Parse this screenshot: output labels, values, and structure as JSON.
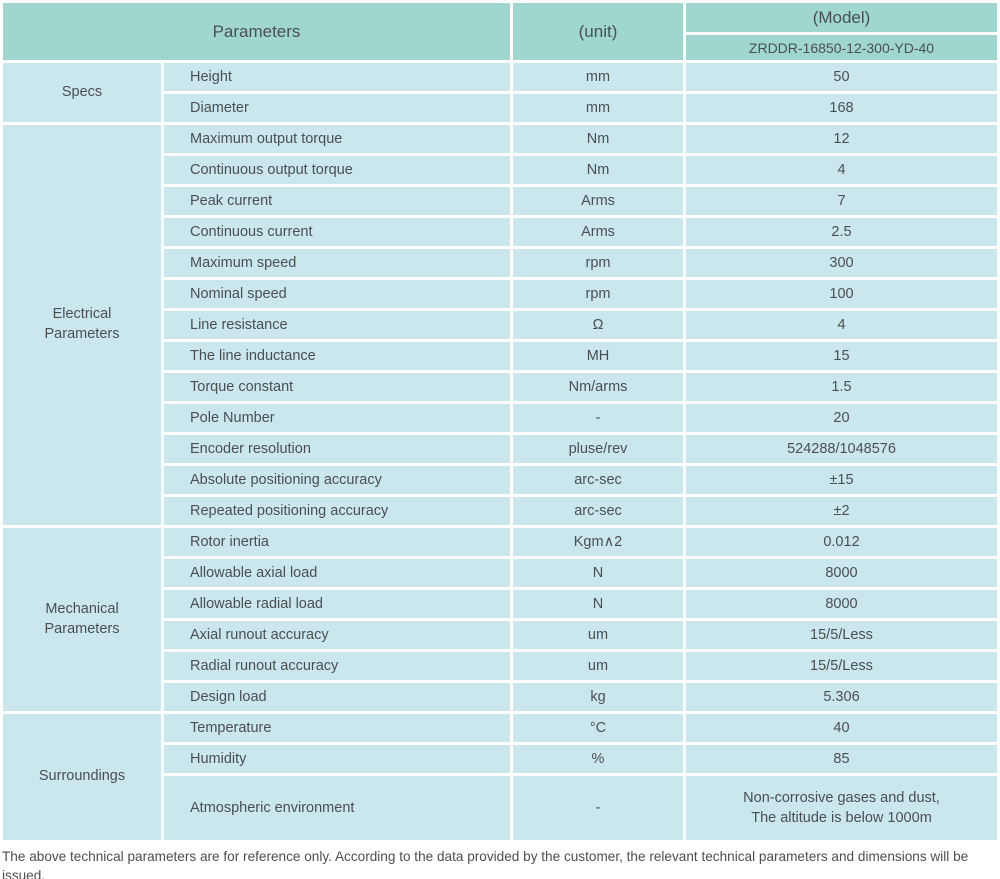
{
  "header": {
    "parameters_label": "Parameters",
    "unit_label": "(unit)",
    "model_label": "(Model)",
    "model_value": "ZRDDR-16850-12-300-YD-40"
  },
  "table": {
    "sections": [
      {
        "category": "Specs",
        "rows": [
          {
            "name": "Height",
            "unit": "mm",
            "value": "50"
          },
          {
            "name": "Diameter",
            "unit": "mm",
            "value": "168"
          }
        ]
      },
      {
        "category": "Electrical\nParameters",
        "rows": [
          {
            "name": "Maximum output torque",
            "unit": "Nm",
            "value": "12"
          },
          {
            "name": "Continuous output torque",
            "unit": "Nm",
            "value": "4"
          },
          {
            "name": "Peak current",
            "unit": "Arms",
            "value": "7"
          },
          {
            "name": "Continuous current",
            "unit": "Arms",
            "value": "2.5"
          },
          {
            "name": "Maximum speed",
            "unit": "rpm",
            "value": "300"
          },
          {
            "name": "Nominal speed",
            "unit": "rpm",
            "value": "100"
          },
          {
            "name": "Line resistance",
            "unit": "Ω",
            "value": "4"
          },
          {
            "name": "The line inductance",
            "unit": "MH",
            "value": "15"
          },
          {
            "name": "Torque constant",
            "unit": "Nm/arms",
            "value": "1.5"
          },
          {
            "name": "Pole Number",
            "unit": "-",
            "value": "20"
          },
          {
            "name": "Encoder resolution",
            "unit": "pluse/rev",
            "value": "524288/1048576"
          },
          {
            "name": "Absolute positioning accuracy",
            "unit": "arc-sec",
            "value": "±15"
          },
          {
            "name": "Repeated positioning accuracy",
            "unit": "arc-sec",
            "value": "±2"
          }
        ]
      },
      {
        "category": "Mechanical\nParameters",
        "rows": [
          {
            "name": "Rotor inertia",
            "unit": "Kgm∧2",
            "value": "0.012"
          },
          {
            "name": "Allowable axial load",
            "unit": "N",
            "value": "8000"
          },
          {
            "name": "Allowable radial load",
            "unit": "N",
            "value": "8000"
          },
          {
            "name": "Axial runout accuracy",
            "unit": "um",
            "value": "15/5/Less"
          },
          {
            "name": "Radial runout accuracy",
            "unit": "um",
            "value": "15/5/Less"
          },
          {
            "name": "Design load",
            "unit": "kg",
            "value": "5.306"
          }
        ]
      },
      {
        "category": "Surroundings",
        "rows": [
          {
            "name": "Temperature",
            "unit": "°C",
            "value": "40"
          },
          {
            "name": "Humidity",
            "unit": "%",
            "value": "85"
          },
          {
            "name": "Atmospheric environment",
            "unit": "-",
            "value": "Non-corrosive gases and dust,\nThe altitude is below 1000m",
            "tall": true
          }
        ]
      }
    ]
  },
  "footer": {
    "note": "The above technical parameters are for reference only. According to the data provided by the customer, the relevant technical parameters and dimensions will be issued."
  },
  "colors": {
    "header_bg": "#9fd7cf",
    "row_bg": "#cbe7ee",
    "grid": "#ffffff",
    "text": "#4a4f53"
  }
}
